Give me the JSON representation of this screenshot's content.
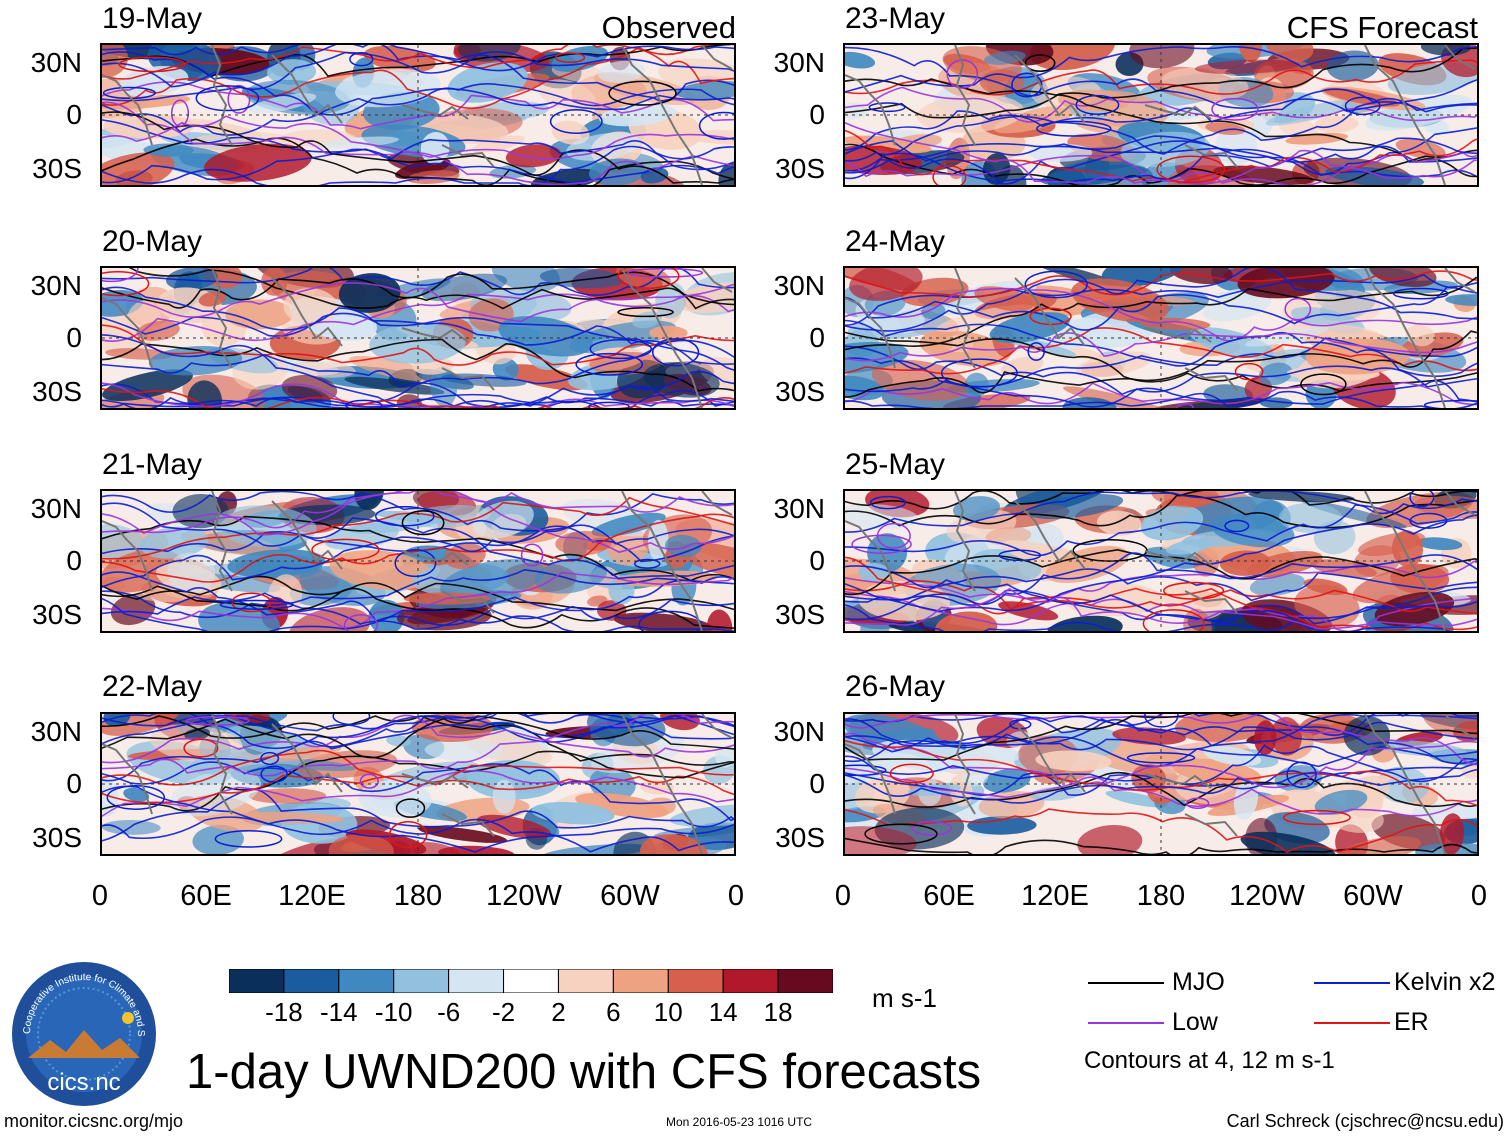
{
  "panels": {
    "observed": {
      "header": "Observed",
      "dates": [
        "19-May",
        "20-May",
        "21-May",
        "22-May"
      ]
    },
    "forecast": {
      "header": "CFS Forecast",
      "dates": [
        "23-May",
        "24-May",
        "25-May",
        "26-May"
      ]
    }
  },
  "axes": {
    "latitude_labels": [
      "30N",
      "0",
      "30S"
    ],
    "longitude_labels": [
      "0",
      "60E",
      "120E",
      "180",
      "120W",
      "60W",
      "0"
    ]
  },
  "colorbar": {
    "levels": [
      "-18",
      "-14",
      "-10",
      "-6",
      "-2",
      "2",
      "6",
      "10",
      "14",
      "18"
    ],
    "units": "m s-1",
    "colors": [
      "#0b2f5b",
      "#1a5c9e",
      "#3f88c0",
      "#91c1df",
      "#d5e6f2",
      "#ffffff",
      "#f7d2c0",
      "#eea282",
      "#d6604d",
      "#b2182b",
      "#670a1f"
    ]
  },
  "legend": {
    "items": [
      {
        "label": "MJO",
        "color": "#000000"
      },
      {
        "label": "Kelvin x2",
        "color": "#0a1ed2"
      },
      {
        "label": "Low",
        "color": "#9a35de"
      },
      {
        "label": "ER",
        "color": "#e01414"
      }
    ],
    "note": "Contours at 4, 12 m s-1"
  },
  "title": "1-day UWND200 with CFS forecasts",
  "logo_text": "cics.nc",
  "logo_ring_text": "Cooperative Institute for Climate and Satellites",
  "footer": {
    "url": "monitor.cicsnc.org/mjo",
    "timestamp": "Mon 2016-05-23 1016 UTC",
    "author": "Carl Schreck (cjschrec@ncsu.edu)"
  }
}
